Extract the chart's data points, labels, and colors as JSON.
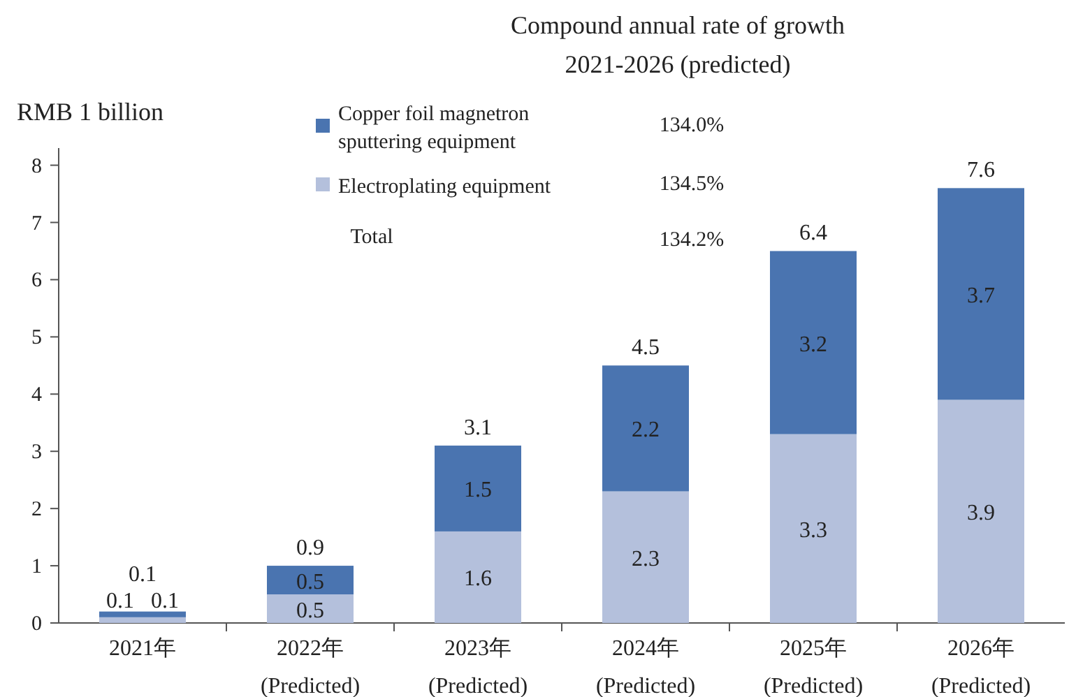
{
  "chart_data": {
    "type": "bar",
    "stacked": true,
    "title": "Compound annual rate of growth\n2021-2026 (predicted)",
    "ylabel": "RMB 1 billion",
    "categories": [
      "2021年",
      "2022年\n(Predicted)",
      "2023年\n(Predicted)",
      "2024年\n(Predicted)",
      "2025年\n(Predicted)",
      "2026年\n(Predicted)"
    ],
    "series": [
      {
        "name": "Electroplating equipment",
        "color": "#b4c0dc",
        "values": [
          0.1,
          0.5,
          1.6,
          2.3,
          3.3,
          3.9
        ]
      },
      {
        "name": "Copper foil magnetron\nsputtering equipment",
        "color": "#4a74b0",
        "values": [
          0.1,
          0.5,
          1.5,
          2.2,
          3.2,
          3.7
        ]
      }
    ],
    "totals": [
      "0.1",
      "0.9",
      "3.1",
      "4.5",
      "6.4",
      "7.6"
    ],
    "data_labels": true,
    "ylim": [
      0,
      8.3
    ],
    "yticks": [
      0,
      1,
      2,
      3,
      4,
      5,
      6,
      7,
      8
    ],
    "grid": false,
    "legend": "top",
    "annotations": [
      "134.5%",
      "134.0%",
      "Total",
      "134.2%"
    ]
  }
}
